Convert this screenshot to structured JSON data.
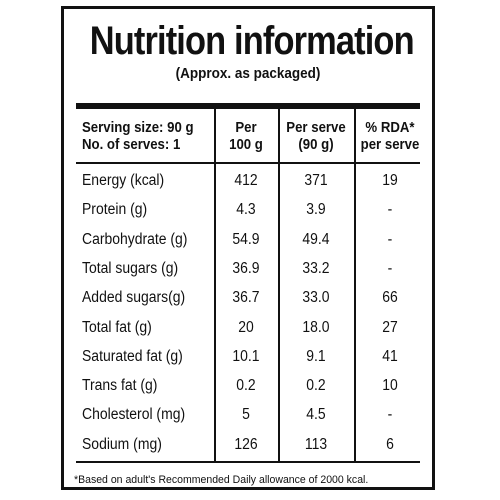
{
  "title": "Nutrition information",
  "subtitle": "(Approx. as packaged)",
  "header": {
    "serving_size": "Serving size: 90 g",
    "no_of_serves": "No. of serves: 1",
    "col_per100_line1": "Per",
    "col_per100_line2": "100 g",
    "col_perserve_line1": "Per serve",
    "col_perserve_line2": "(90 g)",
    "col_rda_line1": "% RDA*",
    "col_rda_line2": "per serve"
  },
  "rows": [
    {
      "name": "Energy (kcal)",
      "per100": "412",
      "perserve": "371",
      "rda": "19"
    },
    {
      "name": "Protein (g)",
      "per100": "4.3",
      "perserve": "3.9",
      "rda": "-"
    },
    {
      "name": "Carbohydrate (g)",
      "per100": "54.9",
      "perserve": "49.4",
      "rda": "-"
    },
    {
      "name": "Total sugars (g)",
      "per100": "36.9",
      "perserve": "33.2",
      "rda": "-"
    },
    {
      "name": "Added sugars(g)",
      "per100": "36.7",
      "perserve": "33.0",
      "rda": "66"
    },
    {
      "name": "Total fat (g)",
      "per100": "20",
      "perserve": "18.0",
      "rda": "27"
    },
    {
      "name": "Saturated fat (g)",
      "per100": "10.1",
      "perserve": "9.1",
      "rda": "41"
    },
    {
      "name": "Trans fat (g)",
      "per100": "0.2",
      "perserve": "0.2",
      "rda": "10"
    },
    {
      "name": "Cholesterol (mg)",
      "per100": "5",
      "perserve": "4.5",
      "rda": "-"
    },
    {
      "name": "Sodium (mg)",
      "per100": "126",
      "perserve": "113",
      "rda": "6"
    }
  ],
  "footnote": "*Based on adult's Recommended Daily allowance of 2000 kcal."
}
